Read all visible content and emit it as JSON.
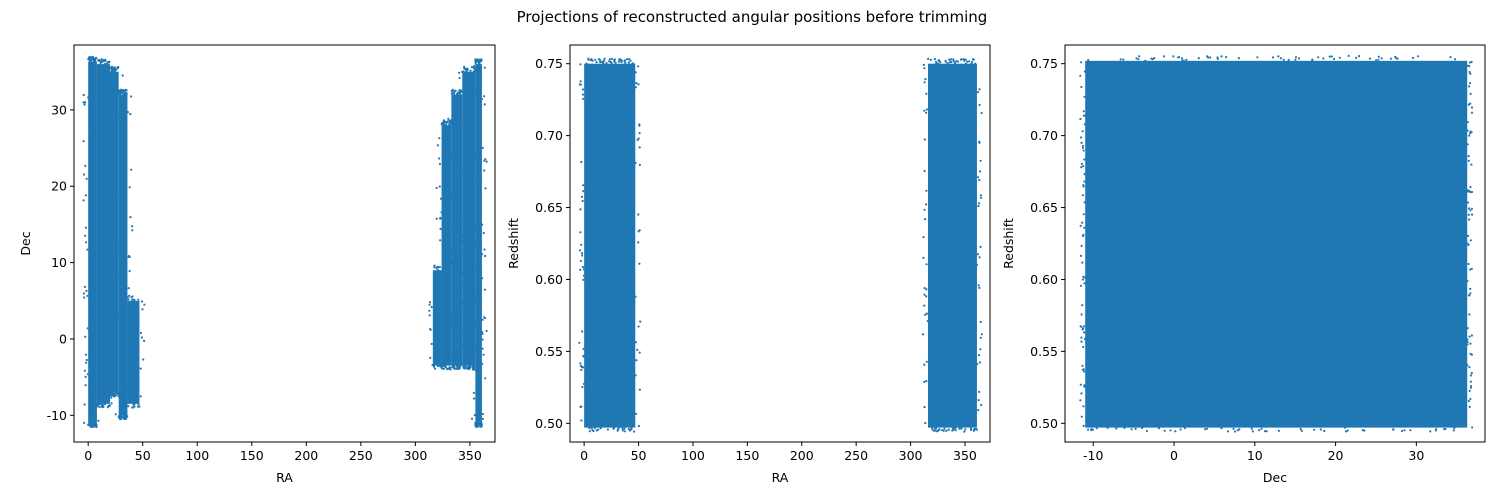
{
  "figure": {
    "title": "Projections of reconstructed angular positions before trimming"
  },
  "chart_data": [
    {
      "type": "scatter",
      "xlabel": "RA",
      "ylabel": "Dec",
      "xlim": [
        -13,
        373
      ],
      "ylim": [
        -13.5,
        38.5
      ],
      "xticks": [
        0,
        50,
        100,
        150,
        200,
        250,
        300,
        350
      ],
      "yticks": [
        -10,
        0,
        10,
        20,
        30
      ],
      "color": "#1f77b4",
      "regions": [
        {
          "x": [
            0,
            8
          ],
          "y": [
            -11,
            36.3
          ]
        },
        {
          "x": [
            8,
            20
          ],
          "y": [
            -8.5,
            36
          ]
        },
        {
          "x": [
            20,
            28
          ],
          "y": [
            -7,
            35
          ]
        },
        {
          "x": [
            28,
            36
          ],
          "y": [
            -10,
            32
          ]
        },
        {
          "x": [
            36,
            47
          ],
          "y": [
            -8.5,
            5
          ]
        },
        {
          "x": [
            316,
            324
          ],
          "y": [
            -3.5,
            9
          ]
        },
        {
          "x": [
            324,
            333
          ],
          "y": [
            -3.5,
            28
          ]
        },
        {
          "x": [
            333,
            343
          ],
          "y": [
            -3.5,
            32
          ]
        },
        {
          "x": [
            343,
            355
          ],
          "y": [
            -3.5,
            35
          ]
        },
        {
          "x": [
            355,
            361
          ],
          "y": [
            -11,
            36
          ]
        }
      ]
    },
    {
      "type": "scatter",
      "xlabel": "RA",
      "ylabel": "Redshift",
      "xlim": [
        -13,
        373
      ],
      "ylim": [
        0.487,
        0.763
      ],
      "xticks": [
        0,
        50,
        100,
        150,
        200,
        250,
        300,
        350
      ],
      "yticks": [
        0.5,
        0.55,
        0.6,
        0.65,
        0.7,
        0.75
      ],
      "color": "#1f77b4",
      "regions": [
        {
          "x": [
            0,
            47
          ],
          "y": [
            0.497,
            0.75
          ]
        },
        {
          "x": [
            316,
            361
          ],
          "y": [
            0.497,
            0.75
          ]
        }
      ]
    },
    {
      "type": "scatter",
      "xlabel": "Dec",
      "ylabel": "Redshift",
      "xlim": [
        -13.5,
        38.5
      ],
      "ylim": [
        0.487,
        0.763
      ],
      "xticks": [
        -10,
        0,
        10,
        20,
        30
      ],
      "yticks": [
        0.5,
        0.55,
        0.6,
        0.65,
        0.7,
        0.75
      ],
      "color": "#1f77b4",
      "regions": [
        {
          "x": [
            -11,
            36.3
          ],
          "y": [
            0.497,
            0.752
          ]
        }
      ]
    }
  ]
}
